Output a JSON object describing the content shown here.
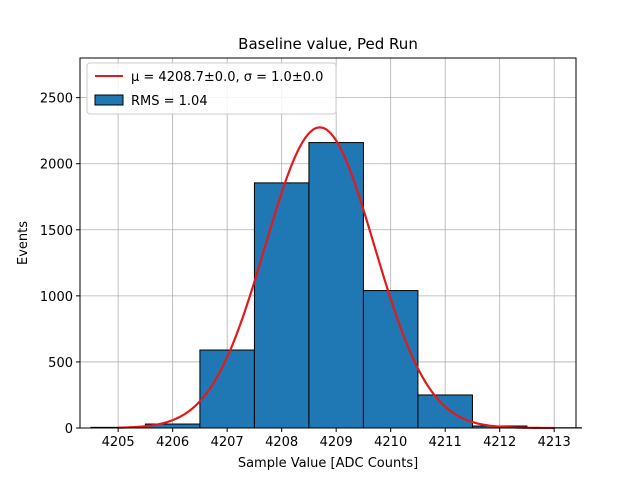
{
  "chart_data": {
    "type": "bar",
    "title": "Baseline value, Ped Run",
    "xlabel": "Sample Value [ADC Counts]",
    "ylabel": "Events",
    "xlim": [
      4204.3,
      4213.4
    ],
    "ylim": [
      0,
      2800
    ],
    "grid": true,
    "x_ticks": [
      4205,
      4206,
      4207,
      4208,
      4209,
      4210,
      4211,
      4212,
      4213
    ],
    "x_tick_labels": [
      "4205",
      "4206",
      "4207",
      "4208",
      "4209",
      "4210",
      "4211",
      "4212",
      "4213"
    ],
    "y_ticks": [
      0,
      500,
      1000,
      1500,
      2000,
      2500
    ],
    "y_tick_labels": [
      "0",
      "500",
      "1000",
      "1500",
      "2000",
      "2500"
    ],
    "bins": [
      {
        "left": 4204.5,
        "right": 4205.5,
        "value": 5
      },
      {
        "left": 4205.5,
        "right": 4206.5,
        "value": 30
      },
      {
        "left": 4206.5,
        "right": 4207.5,
        "value": 590
      },
      {
        "left": 4207.5,
        "right": 4208.5,
        "value": 1855
      },
      {
        "left": 4208.5,
        "right": 4209.5,
        "value": 2160
      },
      {
        "left": 4209.5,
        "right": 4210.5,
        "value": 1040
      },
      {
        "left": 4210.5,
        "right": 4211.5,
        "value": 250
      },
      {
        "left": 4211.5,
        "right": 4212.5,
        "value": 15
      },
      {
        "left": 4212.5,
        "right": 4213.5,
        "value": 2
      }
    ],
    "fit": {
      "type": "gaussian",
      "mu": 4208.7,
      "sigma": 1.0,
      "amplitude": 2275,
      "x_range": [
        4205,
        4213
      ],
      "color": "#e31a1c"
    },
    "bar_color": "#1f77b4",
    "legend_position": "top-left",
    "legend": [
      {
        "label": "μ = 4208.7±0.0, σ = 1.0±0.0",
        "kind": "line"
      },
      {
        "label": "RMS = 1.04",
        "kind": "patch"
      }
    ]
  }
}
